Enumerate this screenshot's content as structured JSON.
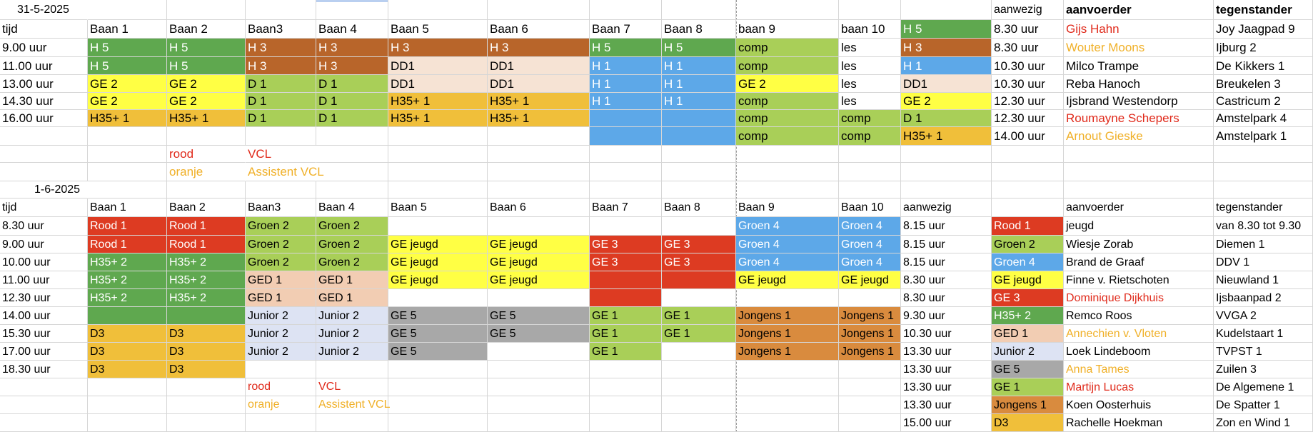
{
  "colors": {
    "H5": "#5fa84f",
    "H3": "#b8652a",
    "H1": "#5da8e8",
    "GE2": "#ffff44",
    "D1": "#a9cf58",
    "DD1": "#f6e3d4",
    "H35": "#f0bf3a",
    "comp": "#a9cf58",
    "Rood1": "#dd3b22",
    "Groen2": "#a9cf58",
    "Groen4": "#5da8e8",
    "GEjeugd": "#ffff44",
    "GE3": "#dd3b22",
    "H352": "#5fa84f",
    "GED1": "#f2cdb3",
    "Junior2": "#dde3f3",
    "GE5": "#a8a8a8",
    "GE1": "#a9cf58",
    "Jongens1": "#d98b3e",
    "D3": "#f0bf3a",
    "red_text": "#e02a1b",
    "orange_text": "#f0b028"
  },
  "day1": {
    "date": "31-5-2025",
    "header": [
      "tijd",
      "Baan 1",
      "Baan 2",
      "Baan3",
      "Baan 4",
      "Baan 5",
      "Baan 6",
      "Baan 7",
      "Baan 8",
      "baan 9",
      "baan 10",
      "H 5",
      "8.30 uur",
      "Gijs Hahn",
      "Joy Jaagpad 9"
    ],
    "top_labels": {
      "aanwezig": "aanwezig",
      "aanvoerder": "aanvoerder",
      "tegenstander": "tegenstander"
    },
    "rows": [
      [
        "9.00 uur",
        "H 5",
        "H 5",
        "H 3",
        "H 3",
        "H 3",
        "H 3",
        "H 5",
        "H 5",
        "comp",
        "les",
        "H 3",
        "8.30 uur",
        "Wouter Moons",
        "Ijburg 2"
      ],
      [
        "11.00 uur",
        "H 5",
        "H 5",
        "H 3",
        "H 3",
        "DD1",
        "DD1",
        "H 1",
        "H 1",
        "comp",
        "les",
        "H 1",
        "10.30 uur",
        "Milco Trampe",
        "De Kikkers 1"
      ],
      [
        "13.00 uur",
        "GE 2",
        "GE 2",
        "D 1",
        "D 1",
        "DD1",
        "DD1",
        "H 1",
        "H 1",
        "GE 2",
        "les",
        "DD1",
        "10.30 uur",
        "Reba Hanoch",
        "Breukelen 3"
      ],
      [
        "14.30 uur",
        "GE 2",
        "GE 2",
        "D 1",
        "D 1",
        "H35+ 1",
        "H35+ 1",
        "H 1",
        "H 1",
        "comp",
        "les",
        "GE 2",
        "12.30 uur",
        "Ijsbrand Westendorp",
        "Castricum 2"
      ],
      [
        "16.00 uur",
        "H35+ 1",
        "H35+ 1",
        "D 1",
        "D 1",
        "H35+ 1",
        "H35+ 1",
        "",
        "",
        "comp",
        "comp",
        "D 1",
        "12.30 uur",
        "Roumayne Schepers",
        "Amstelpark 4"
      ],
      [
        "",
        "",
        "",
        "",
        "",
        "",
        "",
        "",
        "",
        "comp",
        "comp",
        "H35+ 1",
        "14.00 uur",
        "Arnout Gieske",
        "Amstelpark 1"
      ]
    ],
    "legend": {
      "rood": "rood",
      "oranje": "oranje",
      "vcl": "VCL",
      "assistent": "Assistent VCL"
    }
  },
  "day2": {
    "date": "1-6-2025",
    "header": [
      "tijd",
      "Baan 1",
      "Baan 2",
      "Baan3",
      "Baan 4",
      "Baan 5",
      "Baan 6",
      "Baan 7",
      "Baan 8",
      "Baan 9",
      "Baan 10",
      "aanwezig",
      "",
      "aanvoerder",
      "tegenstander"
    ],
    "rows": [
      [
        "8.30 uur",
        "Rood 1",
        "Rood 1",
        "Groen 2",
        "Groen 2",
        "",
        "",
        "",
        "",
        "Groen 4",
        "Groen 4",
        "8.15 uur",
        "Rood 1",
        "jeugd",
        "van 8.30 tot 9.30"
      ],
      [
        "9.00 uur",
        "Rood 1",
        "Rood 1",
        "Groen 2",
        "Groen 2",
        "GE jeugd",
        "GE jeugd",
        "GE 3",
        "GE 3",
        "Groen 4",
        "Groen 4",
        "8.15 uur",
        "Groen 2",
        "Wiesje Zorab",
        "Diemen 1"
      ],
      [
        "10.00 uur",
        "H35+ 2",
        "H35+ 2",
        "Groen 2",
        "Groen 2",
        "GE jeugd",
        "GE jeugd",
        "GE 3",
        "GE 3",
        "Groen 4",
        "Groen 4",
        "8.15 uur",
        "Groen 4",
        "Brand de Graaf",
        "DDV 1"
      ],
      [
        "11.00 uur",
        "H35+ 2",
        "H35+ 2",
        "GED 1",
        "GED 1",
        "GE jeugd",
        "GE jeugd",
        "",
        "",
        "GE jeugd",
        "GE jeugd",
        "8.30 uur",
        "GE jeugd",
        "Finne v. Rietschoten",
        "Nieuwland 1"
      ],
      [
        "12.30 uur",
        "H35+ 2",
        "H35+ 2",
        "GED 1",
        "GED 1",
        "",
        "",
        "",
        "",
        "",
        "",
        "8.30 uur",
        "GE 3",
        "Dominique Dijkhuis",
        "Ijsbaanpad 2"
      ],
      [
        "14.00 uur",
        "",
        "",
        "Junior 2",
        "Junior 2",
        "GE 5",
        "GE 5",
        "GE 1",
        "GE 1",
        "Jongens 1",
        "Jongens 1",
        "9.30 uur",
        "H35+ 2",
        "Remco Roos",
        "VVGA 2"
      ],
      [
        "15.30 uur",
        "D3",
        "D3",
        "Junior 2",
        "Junior 2",
        "GE 5",
        "GE 5",
        "GE 1",
        "GE 1",
        "Jongens 1",
        "Jongens 1",
        "10.30 uur",
        "GED 1",
        "Annechien v. Vloten",
        "Kudelstaart 1"
      ],
      [
        "17.00 uur",
        "D3",
        "D3",
        "Junior 2",
        "Junior 2",
        "GE 5",
        "",
        "GE 1",
        "",
        "Jongens 1",
        "Jongens 1",
        "13.30 uur",
        "Junior 2",
        "Loek Lindeboom",
        "TVPST 1"
      ],
      [
        "18.30 uur",
        "D3",
        "D3",
        "",
        "",
        "",
        "",
        "",
        "",
        "",
        "",
        "13.30 uur",
        "GE 5",
        "Anna Tames",
        "Zuilen 3"
      ],
      [
        "",
        "",
        "",
        "",
        "",
        "",
        "",
        "",
        "",
        "",
        "",
        "13.30 uur",
        "GE 1",
        "Martijn Lucas",
        "De Algemene 1"
      ],
      [
        "",
        "",
        "",
        "",
        "",
        "",
        "",
        "",
        "",
        "",
        "",
        "13.30 uur",
        "Jongens 1",
        "Koen Oosterhuis",
        "De Spatter 1"
      ],
      [
        "",
        "",
        "",
        "",
        "",
        "",
        "",
        "",
        "",
        "",
        "",
        "15.00 uur",
        "D3",
        "Rachelle Hoekman",
        "Zon en Wind 1"
      ]
    ],
    "legend": {
      "rood": "rood",
      "oranje": "oranje",
      "vcl": "VCL",
      "assistent": "Assistent VCL"
    }
  }
}
